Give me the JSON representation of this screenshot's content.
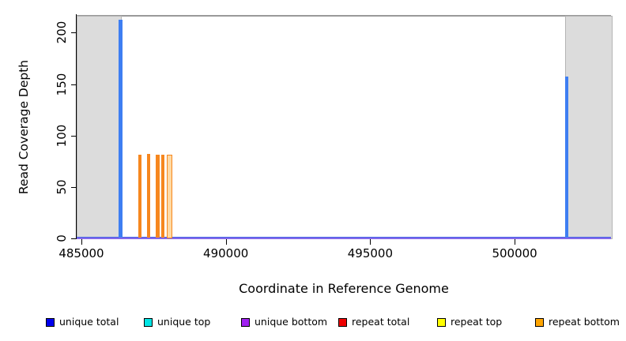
{
  "chart_data": {
    "type": "bar",
    "title": "",
    "xlabel": "Coordinate in Reference Genome",
    "ylabel": "Read Coverage Depth",
    "x_axis": {
      "min": 484836,
      "max": 503336,
      "ticks": [
        485000,
        490000,
        495000,
        500000
      ]
    },
    "y_axis": {
      "min": 0,
      "max": 218,
      "ticks": [
        0,
        50,
        100,
        150,
        200
      ]
    },
    "grid": false,
    "legend_position": "bottom",
    "masked_regions": [
      {
        "name": "masked-left",
        "x1": 484836,
        "x2": 486345
      },
      {
        "name": "masked-right",
        "x1": 501740,
        "x2": 503336
      }
    ],
    "boundary_line": {
      "depth": 217,
      "color": "#999999"
    },
    "baselines": [
      {
        "series": "unique total",
        "depth": 1,
        "color": "#4565E6"
      },
      {
        "series": "unique bottom",
        "depth": 0,
        "color": "#8468EA"
      }
    ],
    "spikes": [
      {
        "series": "unique total",
        "x": 486355,
        "depth": 213,
        "width_units": 110,
        "color": "#3E7EF2",
        "hollow": false
      },
      {
        "series": "repeat bottom",
        "x": 487025,
        "depth": 81,
        "width_units": 120,
        "color": "#F6871F",
        "hollow": false
      },
      {
        "series": "repeat bottom",
        "x": 487326,
        "depth": 82,
        "width_units": 120,
        "color": "#F6871F",
        "hollow": false
      },
      {
        "series": "repeat bottom",
        "x": 487641,
        "depth": 81,
        "width_units": 135,
        "color": "#F6871F",
        "hollow": false
      },
      {
        "series": "repeat bottom",
        "x": 487819,
        "depth": 81,
        "width_units": 120,
        "color": "#F6871F",
        "hollow": false
      },
      {
        "series": "repeat bottom",
        "x": 488038,
        "depth": 81,
        "width_units": 170,
        "color": "#F6871F",
        "hollow": true
      },
      {
        "series": "unique total",
        "x": 501800,
        "depth": 157,
        "width_units": 110,
        "color": "#3E7EF2",
        "hollow": false
      }
    ],
    "legend": [
      {
        "label": "unique total",
        "color": "#0000EE"
      },
      {
        "label": "unique top",
        "color": "#00E5E5"
      },
      {
        "label": "unique bottom",
        "color": "#A020F0"
      },
      {
        "label": "repeat total",
        "color": "#EE0000"
      },
      {
        "label": "repeat top",
        "color": "#FFFF00"
      },
      {
        "label": "repeat bottom",
        "color": "#FFA500"
      }
    ],
    "colors": {
      "masked_fill": "#DCDCDC",
      "masked_border": "#B4B4B4"
    }
  }
}
